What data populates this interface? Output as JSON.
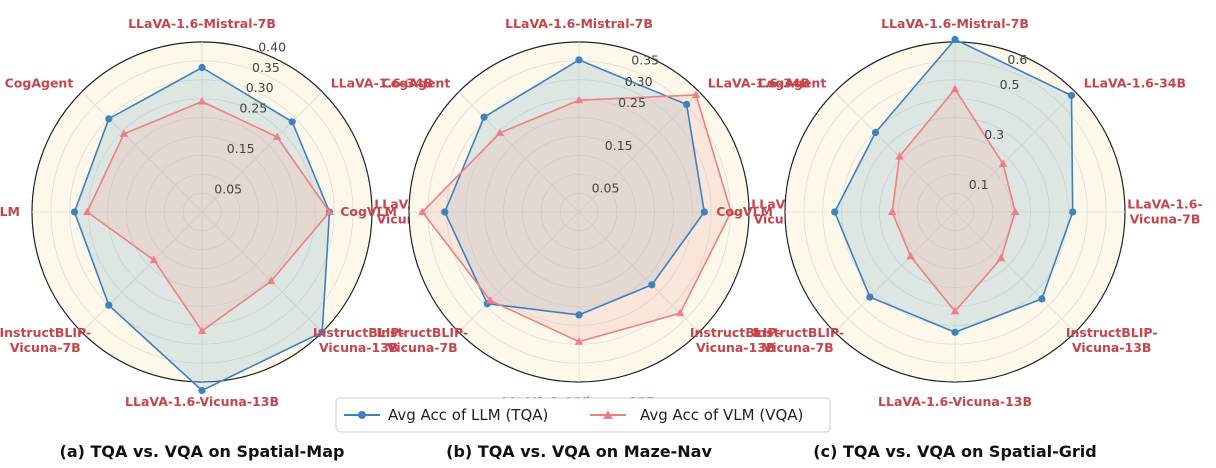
{
  "colors": {
    "llm": "#3b82c0",
    "vlm": "#ef7f82",
    "llm_fill": "#8fb6c9",
    "vlm_fill": "#f2b2ae",
    "plot_bg": "#fdf8ea",
    "axis_label": "#c4464c"
  },
  "legend": {
    "llm_label": "Avg Acc of LLM (TQA)",
    "vlm_label": "Avg Acc of VLM (VQA)"
  },
  "chart_data": [
    {
      "type": "radar",
      "caption": "(a) TQA vs. VQA on Spatial-Map",
      "axes": [
        "LLaVA-1.6-Mistral-7B",
        "LLaVA-1.6-34B",
        "LLaVA-1.6-Vicuna-7B",
        "InstructBLIP-Vicuna-13B",
        "LLaVA-1.6-Vicuna-13B",
        "InstructBLIP-Vicuna-7B",
        "CogVLM",
        "CogAgent"
      ],
      "axis_label_lines": [
        [
          "LLaVA-1.6-Mistral-7B"
        ],
        [
          "LLaVA-1.6-34B"
        ],
        [
          "LLaVA-1.6-",
          "Vicuna-7B"
        ],
        [
          "InstructBLIP-",
          "Vicuna-13B"
        ],
        [
          "LLaVA-1.6-Vicuna-13B"
        ],
        [
          "InstructBLIP-",
          "Vicuna-7B"
        ],
        [
          "CogVLM"
        ],
        [
          "CogAgent"
        ]
      ],
      "rmax": 0.4,
      "ticks": [
        0.05,
        0.15,
        0.25,
        0.3,
        0.35,
        0.4
      ],
      "tick_labels": [
        "0.05",
        "0.15",
        "0.25",
        "0.30",
        "0.35",
        "0.40"
      ],
      "series": [
        {
          "name": "Avg Acc of LLM (TQA)",
          "values": [
            0.34,
            0.3,
            0.3,
            0.4,
            0.42,
            0.31,
            0.3,
            0.31
          ]
        },
        {
          "name": "Avg Acc of VLM (VQA)",
          "values": [
            0.26,
            0.25,
            0.3,
            0.23,
            0.28,
            0.16,
            0.27,
            0.26
          ]
        }
      ]
    },
    {
      "type": "radar",
      "caption": "(b) TQA vs. VQA on Maze-Nav",
      "axes": [
        "LLaVA-1.6-Mistral-7B",
        "LLaVA-1.6-34B",
        "LLaVA-1.6-Vicuna-7B",
        "InstructBLIP-Vicuna-13B",
        "LLaVA-1.6-Vicuna-13B",
        "InstructBLIP-Vicuna-7B",
        "CogVLM",
        "CogAgent"
      ],
      "axis_label_lines": [
        [
          "LLaVA-1.6-Mistral-7B"
        ],
        [
          "LLaVA-1.6-34B"
        ],
        [
          "LLaVA-1.6-",
          "Vicuna-7B"
        ],
        [
          "InstructBLIP-",
          "Vicuna-13B"
        ],
        [
          "LLaVA-1.6-Vicuna-13B"
        ],
        [
          "InstructBLIP-",
          "Vicuna-7B"
        ],
        [
          "CogVLM"
        ],
        [
          "CogAgent"
        ]
      ],
      "rmax": 0.38,
      "ticks": [
        0.05,
        0.15,
        0.25,
        0.3,
        0.35
      ],
      "tick_labels": [
        "0.05",
        "0.15",
        "0.25",
        "0.30",
        "0.35"
      ],
      "series": [
        {
          "name": "Avg Acc of LLM (TQA)",
          "values": [
            0.34,
            0.34,
            0.28,
            0.23,
            0.23,
            0.29,
            0.3,
            0.3
          ]
        },
        {
          "name": "Avg Acc of VLM (VQA)",
          "values": [
            0.25,
            0.37,
            0.34,
            0.32,
            0.29,
            0.28,
            0.35,
            0.25
          ]
        }
      ]
    },
    {
      "type": "radar",
      "caption": "(c) TQA vs. VQA on Spatial-Grid",
      "axes": [
        "LLaVA-1.6-Mistral-7B",
        "LLaVA-1.6-34B",
        "LLaVA-1.6-Vicuna-7B",
        "InstructBLIP-Vicuna-13B",
        "LLaVA-1.6-Vicuna-13B",
        "InstructBLIP-Vicuna-7B",
        "CogVLM",
        "CogAgent"
      ],
      "axis_label_lines": [
        [
          "LLaVA-1.6-Mistral-7B"
        ],
        [
          "LLaVA-1.6-34B"
        ],
        [
          "LLaVA-1.6-",
          "Vicuna-7B"
        ],
        [
          "InstructBLIP-",
          "Vicuna-13B"
        ],
        [
          "LLaVA-1.6-Vicuna-13B"
        ],
        [
          "InstructBLIP-",
          "Vicuna-7B"
        ],
        [
          "CogVLM"
        ],
        [
          "CogAgent"
        ]
      ],
      "rmax": 0.65,
      "ticks": [
        0.1,
        0.3,
        0.5,
        0.6
      ],
      "tick_labels": [
        "0.1",
        "0.3",
        "0.5",
        "0.6"
      ],
      "series": [
        {
          "name": "Avg Acc of LLM (TQA)",
          "values": [
            0.66,
            0.63,
            0.45,
            0.47,
            0.46,
            0.46,
            0.46,
            0.43
          ]
        },
        {
          "name": "Avg Acc of VLM (VQA)",
          "values": [
            0.47,
            0.26,
            0.23,
            0.25,
            0.38,
            0.24,
            0.24,
            0.3
          ]
        }
      ]
    }
  ]
}
